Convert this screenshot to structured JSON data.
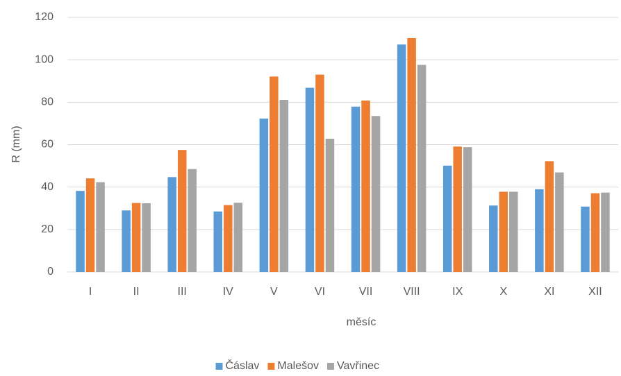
{
  "chart_data": {
    "type": "bar",
    "categories": [
      "I",
      "II",
      "III",
      "IV",
      "V",
      "VI",
      "VII",
      "VIII",
      "IX",
      "X",
      "XI",
      "XII"
    ],
    "series": [
      {
        "name": "Čáslav",
        "color": "#5b9bd5",
        "values": [
          38.2,
          29,
          44.7,
          28.5,
          72.3,
          86.8,
          77.9,
          107.2,
          50.1,
          31.3,
          39,
          30.8
        ]
      },
      {
        "name": "Malešov",
        "color": "#ed7d31",
        "values": [
          44.1,
          32.5,
          57.5,
          31.5,
          92.1,
          93,
          80.8,
          110.2,
          59.1,
          37.8,
          52.2,
          37.1
        ]
      },
      {
        "name": "Vavřinec",
        "color": "#a5a5a5",
        "values": [
          42.3,
          32.4,
          48.5,
          32.6,
          81.1,
          62.8,
          73.5,
          97.6,
          58.8,
          37.8,
          46.9,
          37.4
        ]
      }
    ],
    "ylim": [
      0,
      120
    ],
    "yticks": [
      0,
      20,
      40,
      60,
      80,
      100,
      120
    ],
    "grid": true,
    "xlabel": "měsíc",
    "ylabel": "R (mm)",
    "legend": "bottom"
  }
}
